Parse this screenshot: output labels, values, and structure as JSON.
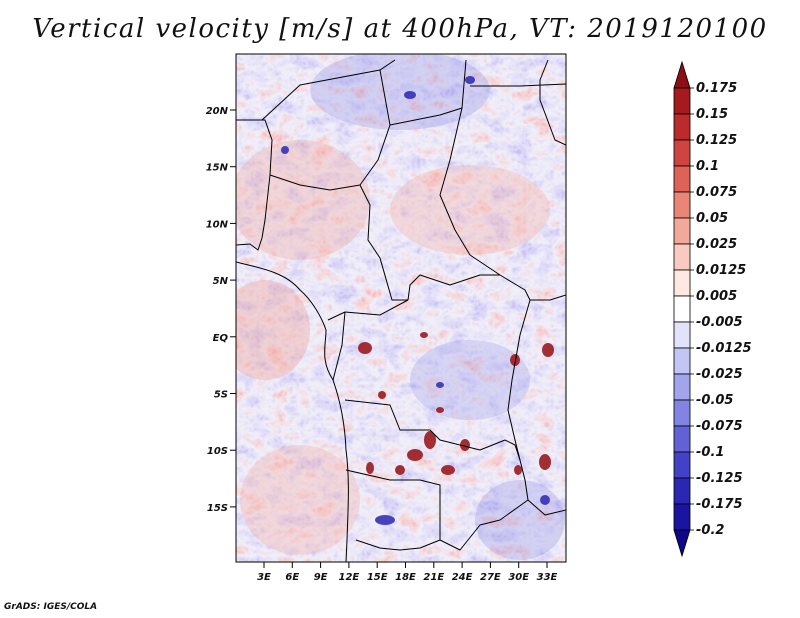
{
  "title": "Vertical velocity [m/s] at 400hPa, VT: 2019120100",
  "credit": "GrADS: IGES/COLA",
  "lat_labels": [
    "20N",
    "15N",
    "10N",
    "5N",
    "EQ",
    "5S",
    "10S",
    "15S"
  ],
  "lon_labels": [
    "3E",
    "6E",
    "9E",
    "12E",
    "15E",
    "18E",
    "21E",
    "24E",
    "27E",
    "30E",
    "33E"
  ],
  "colorbar": {
    "levels": [
      "0.175",
      "0.15",
      "0.125",
      "0.1",
      "0.075",
      "0.05",
      "0.025",
      "0.0125",
      "0.005",
      "-0.005",
      "-0.0125",
      "-0.025",
      "-0.05",
      "-0.075",
      "-0.1",
      "-0.125",
      "-0.175",
      "-0.2"
    ],
    "colors": [
      "#8b0f14",
      "#a51a1e",
      "#bc2b2b",
      "#cf4340",
      "#df6258",
      "#ea8676",
      "#f3a999",
      "#f9cbc0",
      "#fde8e2",
      "#ffffff",
      "#e2e3fb",
      "#c3c5f4",
      "#a3a5ec",
      "#8283e2",
      "#6262d6",
      "#4342c6",
      "#2a27b3",
      "#1a14a0",
      "#0d0888"
    ]
  }
}
